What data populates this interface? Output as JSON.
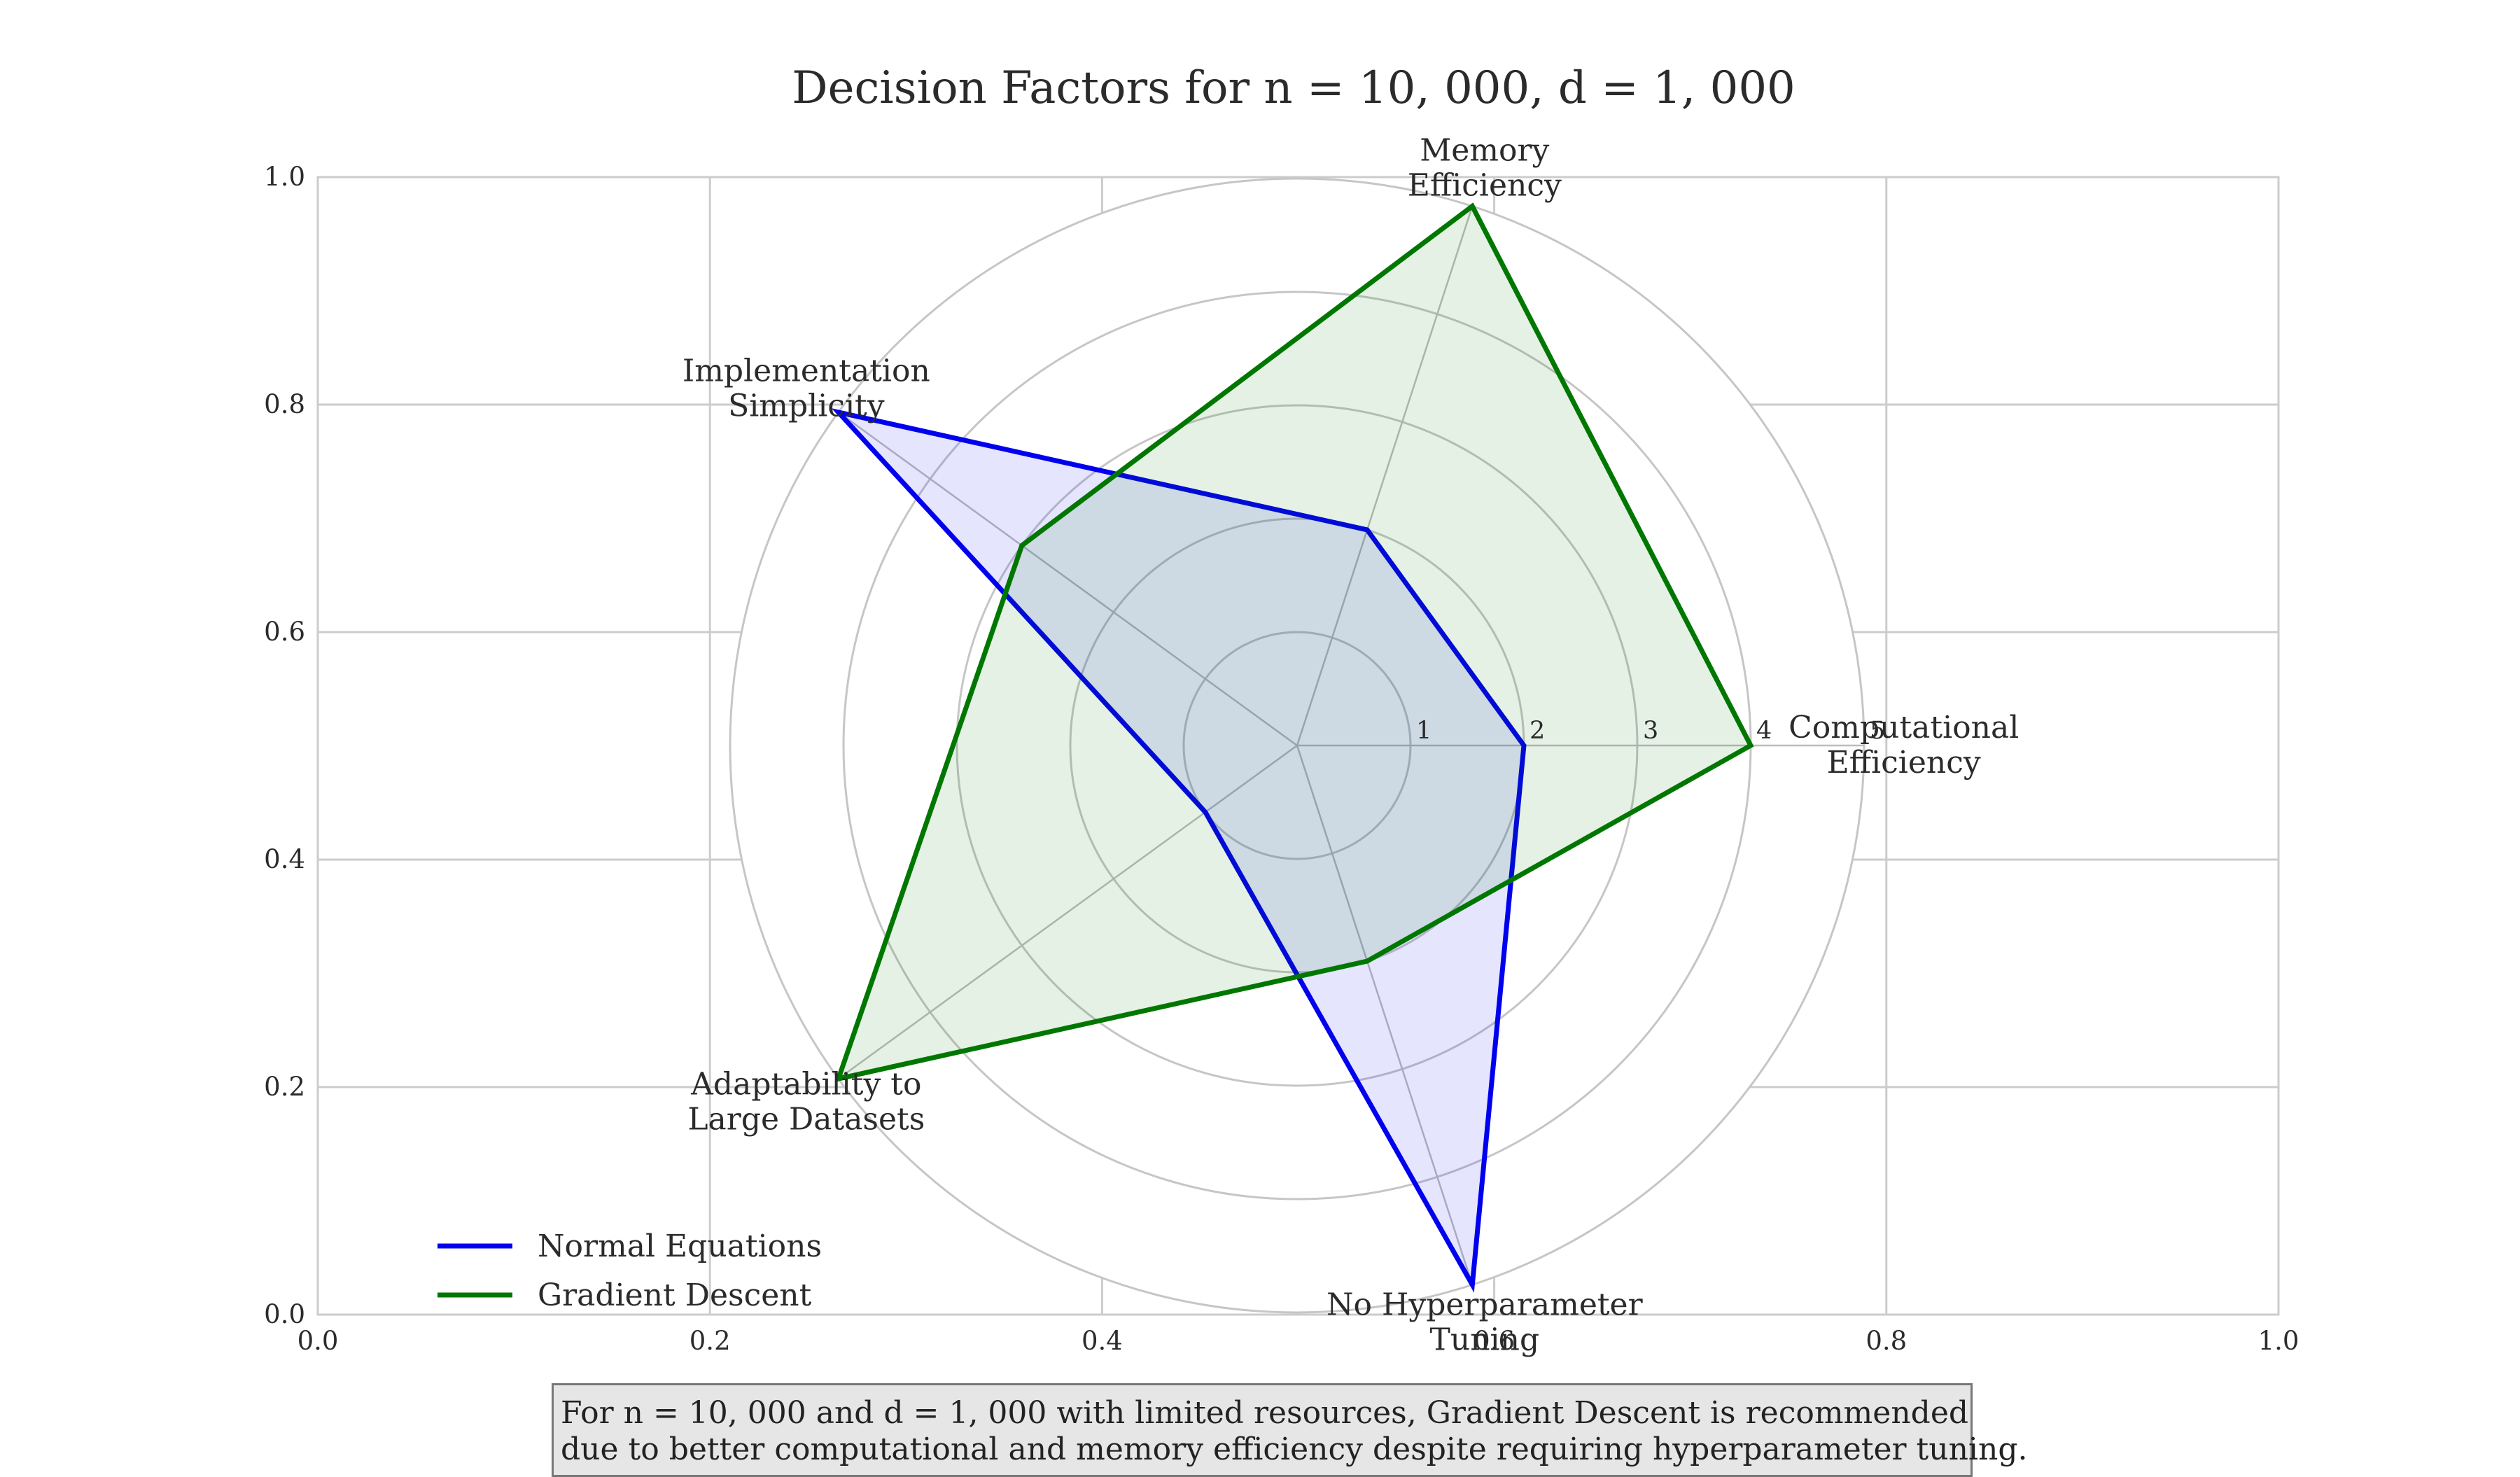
{
  "chart_data": {
    "type": "radar",
    "title": "Decision Factors for n = 10, 000, d = 1, 000",
    "axes": [
      [
        "Computational",
        "Efficiency"
      ],
      [
        "Memory",
        "Efficiency"
      ],
      [
        "Implementation",
        "Simplicity"
      ],
      [
        "Adaptability to",
        "Large Datasets"
      ],
      [
        "No Hyperparameter",
        "Tuning"
      ]
    ],
    "radial_ticks": [
      "1",
      "2",
      "3",
      "4",
      "5"
    ],
    "rmax": 5,
    "series": [
      {
        "name": "Normal Equations",
        "color": "#0000ee",
        "fill": "rgba(0,0,238,0.10)",
        "values": [
          2,
          2,
          5,
          1,
          5
        ]
      },
      {
        "name": "Gradient Descent",
        "color": "#007700",
        "fill": "rgba(0,120,0,0.10)",
        "values": [
          4,
          5,
          3,
          5,
          2
        ]
      }
    ],
    "background_axes": {
      "xticks": [
        "0.0",
        "0.2",
        "0.4",
        "0.6",
        "0.8",
        "1.0"
      ],
      "yticks": [
        "0.0",
        "0.2",
        "0.4",
        "0.6",
        "0.8",
        "1.0"
      ],
      "xlim": [
        0,
        1
      ],
      "ylim": [
        0,
        1
      ],
      "grid": true
    },
    "legend_position": "lower-left"
  },
  "conclusion": {
    "line1": "For n = 10, 000 and d = 1, 000 with limited resources, Gradient Descent is recommended",
    "line2": "due to better computational and memory efficiency despite requiring hyperparameter tuning."
  }
}
